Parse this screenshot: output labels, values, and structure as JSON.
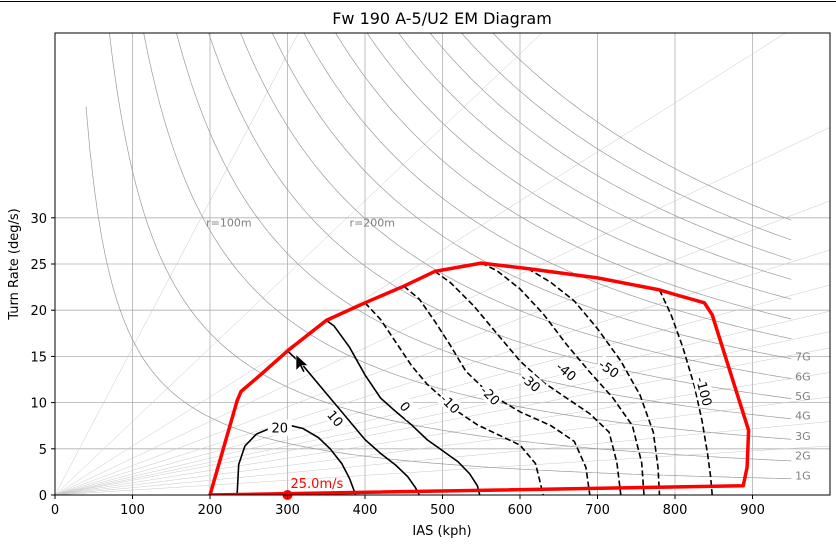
{
  "chart_data": {
    "type": "line",
    "title": "Fw 190 A-5/U2 EM Diagram",
    "xlabel": "IAS (kph)",
    "ylabel": "Turn Rate (deg/s)",
    "xlim": [
      0,
      1000
    ],
    "ylim": [
      0,
      50
    ],
    "x_ticks": [
      0,
      100,
      200,
      300,
      400,
      500,
      600,
      700,
      800,
      900
    ],
    "y_ticks": [
      0,
      5,
      10,
      15,
      20,
      25,
      30
    ],
    "grid": true,
    "radius_labels": [
      "r=100m",
      "r=200m"
    ],
    "g_labels": [
      "1G",
      "2G",
      "3G",
      "4G",
      "5G",
      "6G",
      "7G"
    ],
    "envelope": {
      "color": "#ff0000",
      "x": [
        200,
        235,
        240,
        265,
        300,
        350,
        400,
        450,
        490,
        550,
        610,
        700,
        780,
        800,
        838,
        848,
        895,
        893,
        888,
        200
      ],
      "y": [
        0,
        10.2,
        11.2,
        13.0,
        15.6,
        18.9,
        20.8,
        22.6,
        24.2,
        25.1,
        24.5,
        23.5,
        22.2,
        21.7,
        20.8,
        19.5,
        7.0,
        3.0,
        1.0,
        0
      ]
    },
    "ps_contours": [
      {
        "label": "20",
        "style": "solid",
        "x": [
          235,
          237,
          245,
          260,
          280,
          300,
          320,
          340,
          355,
          370,
          380,
          388
        ],
        "y": [
          0,
          3.3,
          5.3,
          6.6,
          7.3,
          7.6,
          7.2,
          6.2,
          5.0,
          3.4,
          1.8,
          0
        ]
      },
      {
        "label": "10",
        "style": "solid",
        "x": [
          300,
          320,
          340,
          360,
          380,
          400,
          420,
          440,
          455,
          465,
          470
        ],
        "y": [
          15.6,
          14.0,
          12.0,
          10.0,
          8.0,
          6.0,
          4.5,
          3.2,
          2.0,
          0.8,
          0
        ]
      },
      {
        "label": "0",
        "style": "solid",
        "x": [
          350,
          360,
          380,
          400,
          420,
          440,
          460,
          480,
          500,
          520,
          535,
          545,
          548
        ],
        "y": [
          18.9,
          18.3,
          16.0,
          13.0,
          10.5,
          9.0,
          7.6,
          6.0,
          4.8,
          3.6,
          2.3,
          1.0,
          0
        ]
      },
      {
        "label": "-10",
        "style": "dashed",
        "x": [
          400,
          420,
          440,
          460,
          480,
          500,
          520,
          545,
          570,
          600,
          620,
          630
        ],
        "y": [
          20.8,
          19.0,
          16.5,
          14.0,
          12.0,
          10.5,
          9.0,
          7.6,
          6.6,
          5.4,
          3.4,
          0
        ]
      },
      {
        "label": "-20",
        "style": "dashed",
        "x": [
          450,
          470,
          490,
          510,
          530,
          560,
          600,
          640,
          670,
          685,
          690
        ],
        "y": [
          22.6,
          21.2,
          18.8,
          16.2,
          13.4,
          11.0,
          9.0,
          7.5,
          5.8,
          3.0,
          0
        ]
      },
      {
        "label": "-30",
        "style": "dashed",
        "x": [
          490,
          510,
          540,
          570,
          600,
          630,
          660,
          690,
          715,
          725,
          730
        ],
        "y": [
          24.2,
          23.0,
          20.5,
          17.5,
          14.5,
          12.2,
          10.5,
          8.8,
          6.8,
          3.5,
          0
        ]
      },
      {
        "label": "-40",
        "style": "dashed",
        "x": [
          550,
          570,
          600,
          630,
          660,
          690,
          720,
          745,
          757,
          760
        ],
        "y": [
          25.1,
          24.3,
          22.3,
          19.6,
          16.3,
          13.3,
          10.5,
          7.5,
          3.5,
          0
        ]
      },
      {
        "label": "-50",
        "style": "dashed",
        "x": [
          610,
          640,
          670,
          700,
          730,
          755,
          772,
          778,
          780
        ],
        "y": [
          24.5,
          23.0,
          21.0,
          18.0,
          14.5,
          10.8,
          6.8,
          3.0,
          0
        ]
      },
      {
        "label": "-100",
        "style": "dashed",
        "x": [
          780,
          795,
          810,
          825,
          835,
          842,
          846,
          848
        ],
        "y": [
          22.2,
          19.5,
          16.0,
          11.8,
          8.0,
          4.5,
          2.0,
          0
        ]
      }
    ],
    "contour_labels": [
      "20",
      "10",
      "0",
      "-10",
      "-20",
      "-30",
      "-40",
      "-50",
      "-100"
    ],
    "marker_label": "25.0m/s",
    "marker_point": [
      300,
      0
    ],
    "cursor_point": [
      311,
      15.2
    ]
  }
}
